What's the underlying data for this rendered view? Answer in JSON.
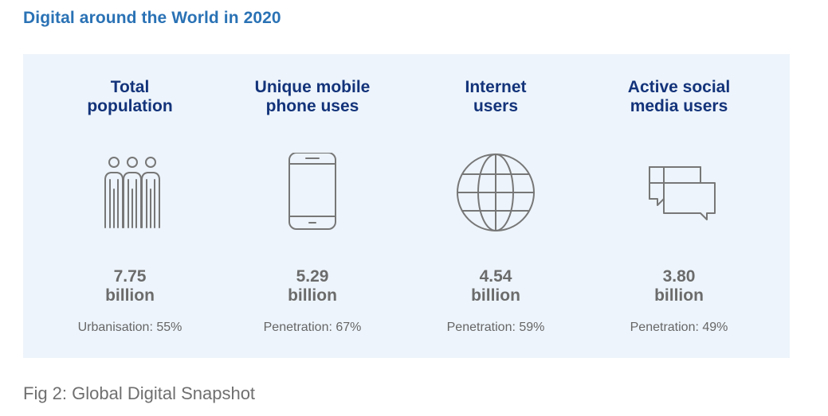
{
  "title": "Digital around the World in 2020",
  "stats": [
    {
      "label": "Total\npopulation",
      "icon": "people-icon",
      "value": "7.75",
      "unit": "billion",
      "note": "Urbanisation: 55%"
    },
    {
      "label": "Unique mobile\nphone uses",
      "icon": "mobile-phone-icon",
      "value": "5.29",
      "unit": "billion",
      "note": "Penetration: 67%"
    },
    {
      "label": "Internet\nusers",
      "icon": "globe-icon",
      "value": "4.54",
      "unit": "billion",
      "note": "Penetration: 59%"
    },
    {
      "label": "Active social\nmedia users",
      "icon": "chat-bubbles-icon",
      "value": "3.80",
      "unit": "billion",
      "note": "Penetration: 49%"
    }
  ],
  "caption": "Fig 2: Global Digital Snapshot",
  "colors": {
    "title": "#2a72b5",
    "label": "#13337a",
    "value": "#6b6b6b",
    "panel_background": "#edf4fb",
    "icon_stroke": "#777777"
  }
}
